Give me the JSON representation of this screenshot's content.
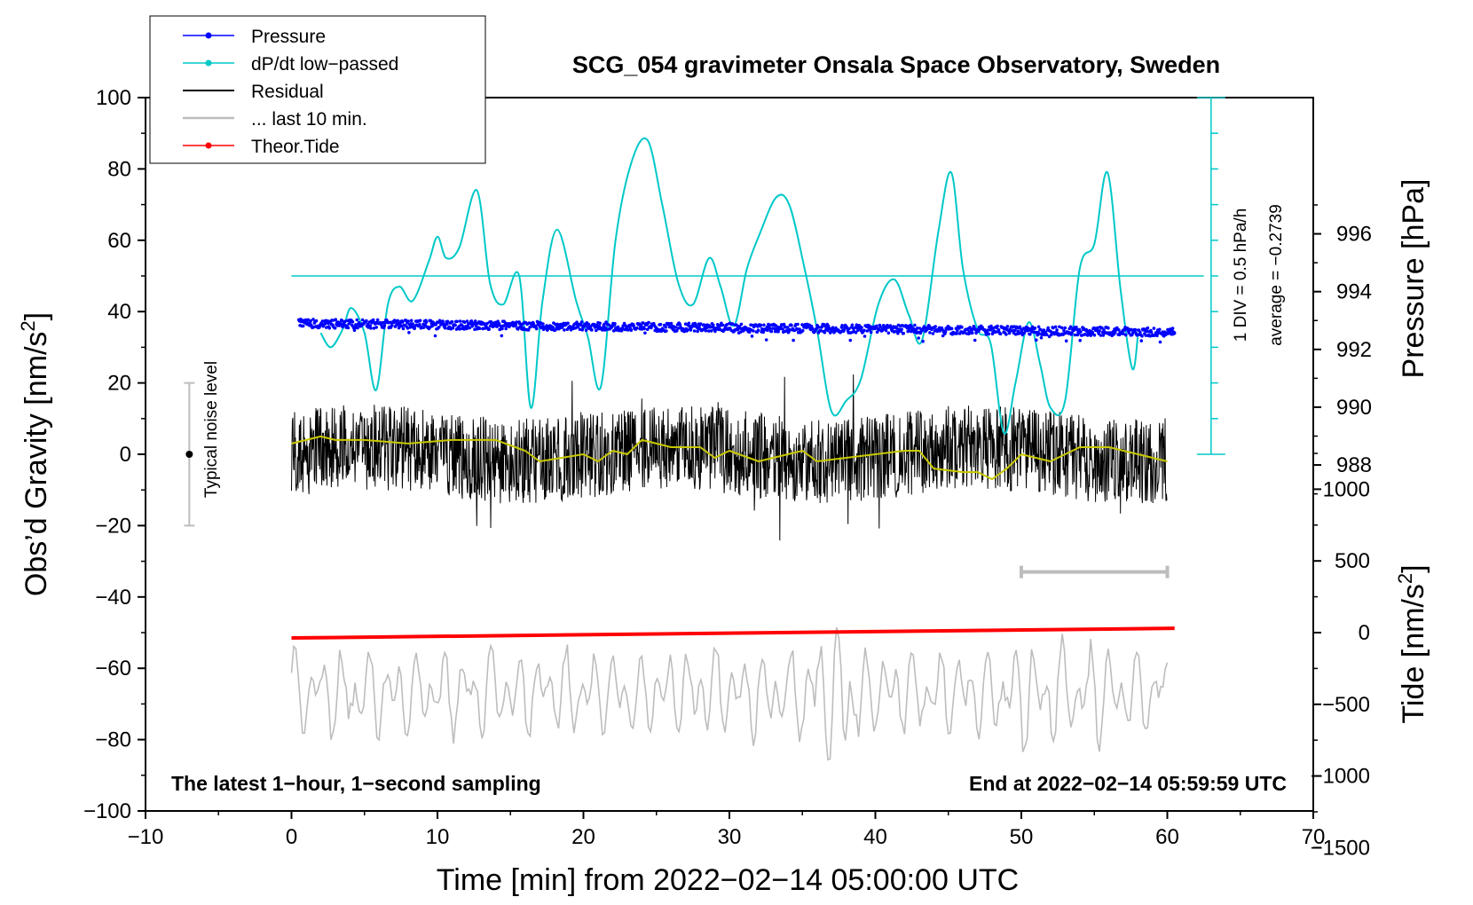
{
  "chart_data": {
    "type": "line",
    "title": "SCG_054 gravimeter Onsala Space Observatory, Sweden",
    "xlabel": "Time [min] from 2022−02−14 05:00:00 UTC",
    "ylabel": "Obs’d Gravity [nm/s",
    "ylabel_sup": "2",
    "ylabel_close": "]",
    "y2_pressure_label": "Pressure [hPa]",
    "y2_tide_label": "Tide [nm/s",
    "y2_tide_sup": "2",
    "y2_tide_close": "]",
    "xlim": [
      -10,
      70
    ],
    "ylim": [
      -100,
      100
    ],
    "x_ticks": [
      -10,
      0,
      10,
      20,
      30,
      40,
      50,
      60,
      70
    ],
    "x_tick_labels": [
      "−10",
      "0",
      "10",
      "20",
      "30",
      "40",
      "50",
      "60",
      "70"
    ],
    "y_ticks": [
      -100,
      -80,
      -60,
      -40,
      -20,
      0,
      20,
      40,
      60,
      80,
      100
    ],
    "y_tick_labels": [
      "−100",
      "−80",
      "−60",
      "−40",
      "−20",
      "0",
      "20",
      "40",
      "60",
      "80",
      "100"
    ],
    "pressure_axis": {
      "ticks": [
        988,
        990,
        992,
        994,
        996
      ],
      "tick_labels": [
        "988",
        "990",
        "992",
        "994",
        "996"
      ],
      "range_hpa": [
        985.2,
        998.1
      ]
    },
    "tide_axis": {
      "ticks": [
        -1500,
        -1000,
        -500,
        0,
        500,
        1000
      ],
      "tick_labels": [
        "−1500",
        "−1000",
        "−500",
        "0",
        "500",
        "1000"
      ],
      "range": [
        -1500,
        1200
      ]
    },
    "legend": [
      {
        "label": "Pressure",
        "color": "#0000ff",
        "marker": true
      },
      {
        "label": "dP/dt low−passed",
        "color": "#00c8c8",
        "marker": true
      },
      {
        "label": "Residual",
        "color": "#000000",
        "marker": false
      },
      {
        "label": "... last 10 min.",
        "color": "#bdbdbd",
        "marker": false
      },
      {
        "label": "Theor.Tide",
        "color": "#ff0000",
        "marker": true
      }
    ],
    "series": [
      {
        "name": "Pressure",
        "unit": "hPa",
        "color": "#0000ff",
        "x_range": [
          0.5,
          60.5
        ],
        "start": 992.9,
        "end": 992.6,
        "scatter": 0.15
      },
      {
        "name": "dP/dt low−passed",
        "color": "#00c8c8",
        "baseline_y": 50,
        "scale_note": "1 DIV = 0.5 hPa/h",
        "x": [
          2,
          2.7,
          3.5,
          4.1,
          5,
          5.8,
          6.6,
          7.4,
          8.3,
          9.4,
          10,
          10.6,
          11.5,
          12.7,
          13.6,
          14.5,
          15.6,
          16.4,
          17.2,
          18.2,
          19.5,
          20.3,
          21.2,
          22.2,
          23.3,
          24.4,
          25.4,
          26.5,
          27.5,
          28.6,
          29.4,
          30.3,
          31.2,
          32.1,
          33.2,
          34.1,
          35.1,
          36,
          37,
          38,
          39,
          40.2,
          41.3,
          42.3,
          43.2,
          44.3,
          45.2,
          46,
          47,
          47.9,
          48.8,
          49.6,
          50.5,
          51.3,
          52,
          53,
          54,
          55,
          55.9,
          56.8,
          57.6,
          58
        ],
        "y": [
          34,
          30,
          35,
          41,
          34,
          18,
          42,
          47,
          43,
          54,
          61,
          55,
          58,
          74,
          48,
          42,
          50,
          13,
          43,
          63,
          43,
          33,
          19,
          60,
          82,
          88,
          70,
          48,
          42,
          55,
          47,
          36,
          52,
          62,
          72,
          70,
          53,
          35,
          12,
          15,
          21,
          42,
          49,
          39,
          32,
          62,
          79,
          52,
          35,
          31,
          6,
          20,
          37,
          25,
          13,
          15,
          52,
          59,
          79,
          46,
          24,
          34
        ]
      },
      {
        "name": "Residual",
        "color": "#000000",
        "x_range": [
          0,
          60
        ],
        "amplitude": 12
      },
      {
        "name": "Residual smoothed",
        "color": "#c8c800",
        "x": [
          0,
          2,
          3,
          5,
          8,
          11,
          14,
          16,
          17,
          20,
          21,
          22,
          23,
          24,
          25,
          26,
          28,
          29,
          30,
          32,
          34,
          35,
          36,
          38,
          40,
          42,
          43,
          44,
          46,
          47,
          48,
          49,
          50,
          51,
          52,
          54,
          56,
          58,
          60
        ],
        "y": [
          3,
          5,
          4,
          4,
          3,
          4,
          4,
          1,
          -2,
          0,
          -2,
          1,
          0,
          4,
          3,
          2,
          2,
          -1,
          1,
          -2,
          0,
          1,
          -2,
          -1,
          0,
          1,
          1,
          -4,
          -5,
          -5,
          -7,
          -4,
          0,
          -1,
          -2,
          2,
          2,
          0,
          -2
        ]
      },
      {
        "name": "... last 10 min.",
        "color": "#bdbdbd",
        "x_range": [
          0,
          60
        ],
        "center_y": -67
      },
      {
        "name": "Theor.Tide",
        "unit": "nm/s²",
        "color": "#ff0000",
        "x": [
          0,
          60.5
        ],
        "y": [
          -51.5,
          -48.8
        ]
      }
    ],
    "noise_bar": {
      "label": "Typical noise level",
      "x": -7,
      "y_min": -20,
      "y_max": 20,
      "center": 0
    },
    "last10_bar": {
      "x_start": 50,
      "x_end": 60,
      "y": -33
    },
    "pressure_scale": {
      "line1": "1 DIV = 0.5 hPa/h",
      "line2": "average = −0.2739",
      "x": 63,
      "y_min": 0,
      "y_max": 100
    },
    "annotations": {
      "bottom_left": "The latest 1−hour, 1−second sampling",
      "bottom_right": "End at 2022−02−14 05:59:59 UTC"
    }
  }
}
